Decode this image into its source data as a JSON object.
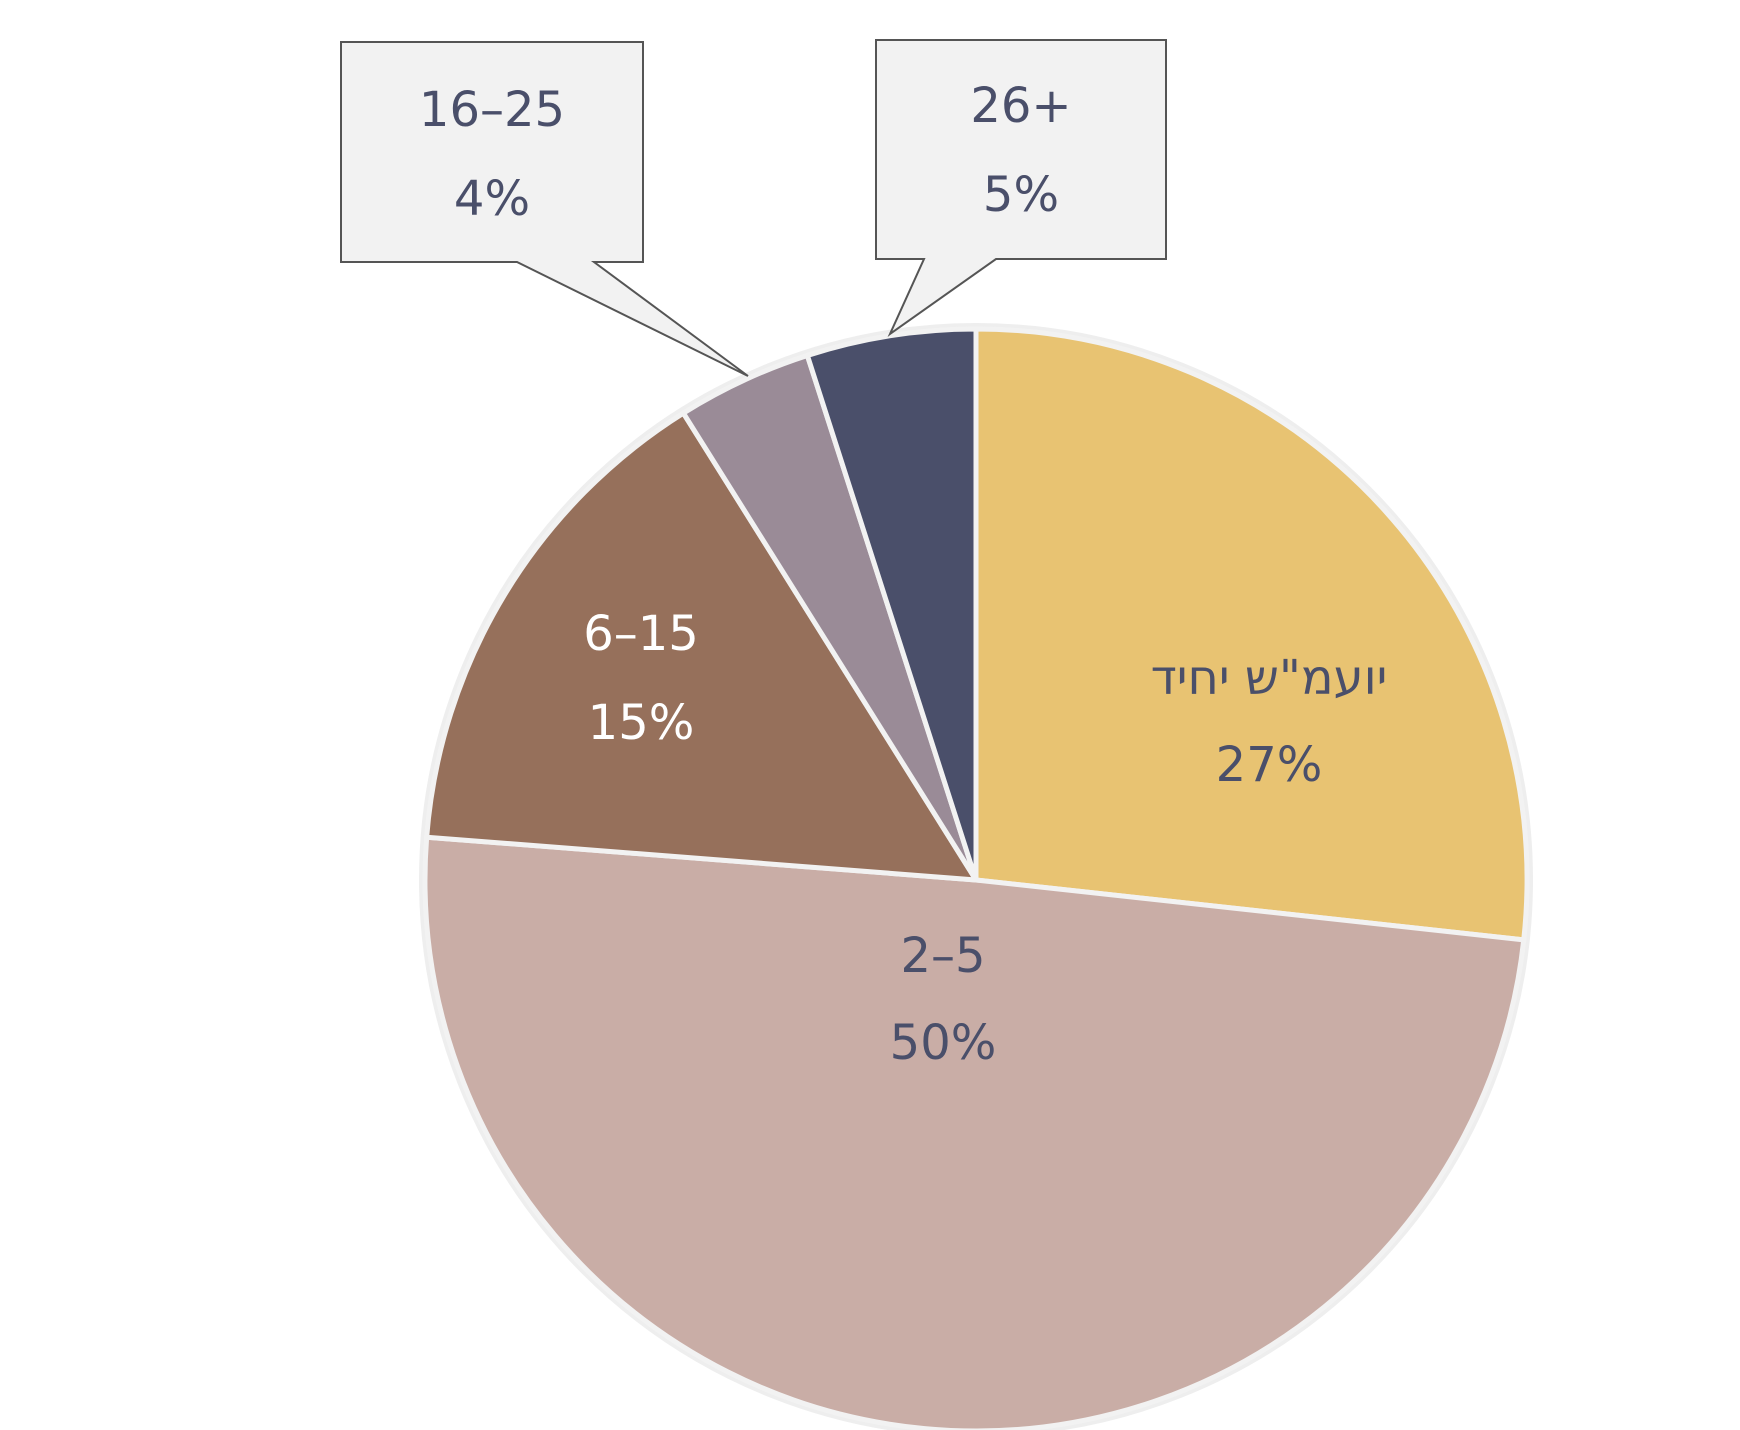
{
  "chart_data": {
    "type": "pie",
    "categories": [
      "יועמ\"ש יחיד",
      "2–5",
      "6–15",
      "16–25",
      "26+"
    ],
    "values": [
      27,
      50,
      15,
      4,
      5
    ],
    "value_labels": [
      "27%",
      "50%",
      "15%",
      "4%",
      "5%"
    ],
    "colors": [
      "#E8C372",
      "#C9ADA6",
      "#96705B",
      "#9A8B97",
      "#4A4F6A"
    ]
  }
}
